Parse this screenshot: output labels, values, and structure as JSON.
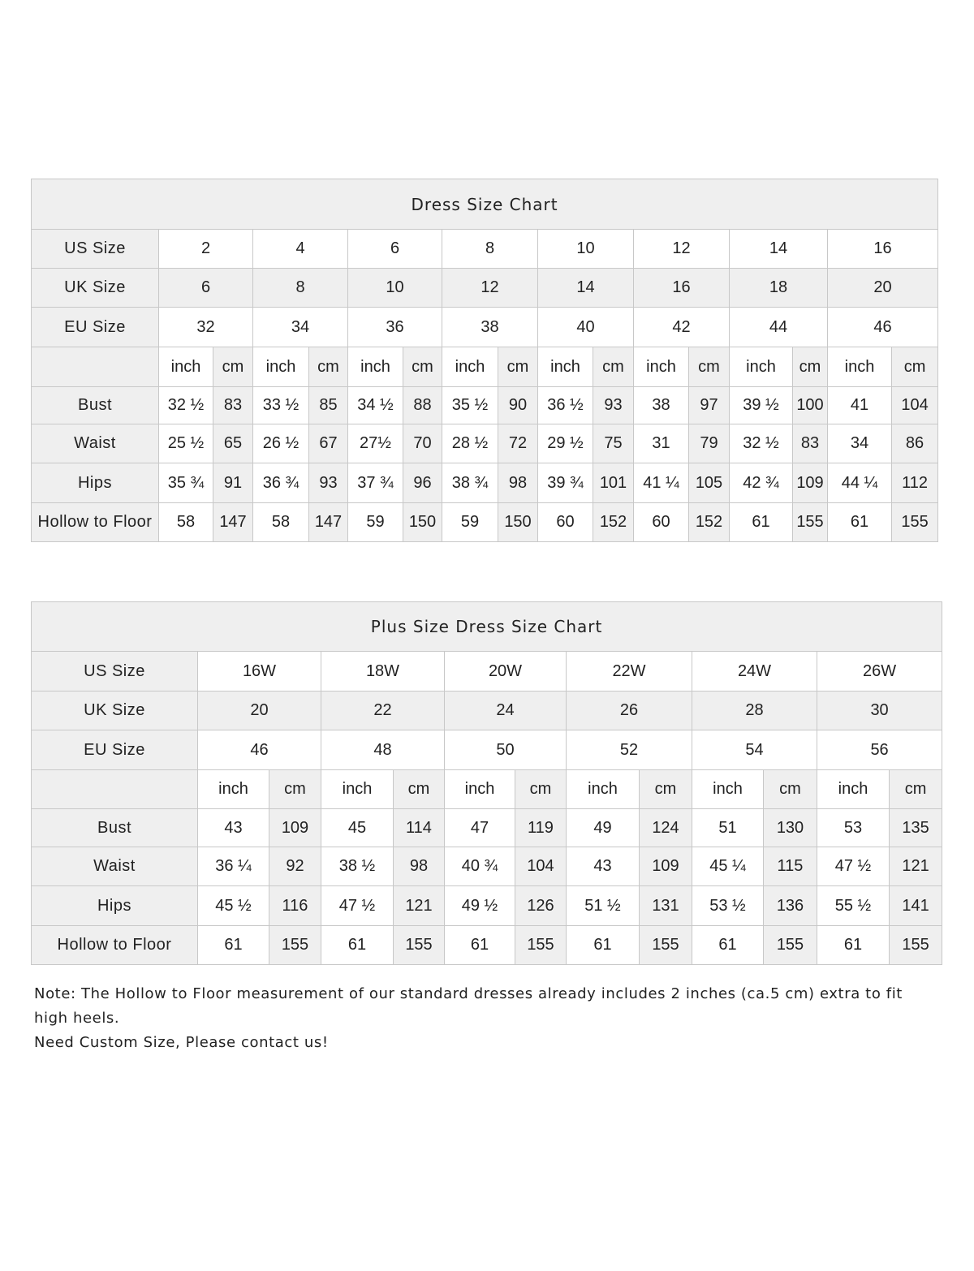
{
  "standard": {
    "title": "Dress Size Chart",
    "size_rows": [
      {
        "label": "US Size",
        "values": [
          "2",
          "4",
          "6",
          "8",
          "10",
          "12",
          "14",
          "16"
        ]
      },
      {
        "label": "UK Size",
        "values": [
          "6",
          "8",
          "10",
          "12",
          "14",
          "16",
          "18",
          "20"
        ]
      },
      {
        "label": "EU Size",
        "values": [
          "32",
          "34",
          "36",
          "38",
          "40",
          "42",
          "44",
          "46"
        ]
      }
    ],
    "unit_labels": [
      "inch",
      "cm"
    ],
    "measure_rows": [
      {
        "label": "Bust",
        "values": [
          "32 ½",
          "83",
          "33 ½",
          "85",
          "34 ½",
          "88",
          "35 ½",
          "90",
          "36 ½",
          "93",
          "38",
          "97",
          "39 ½",
          "100",
          "41",
          "104"
        ]
      },
      {
        "label": "Waist",
        "values": [
          "25 ½",
          "65",
          "26 ½",
          "67",
          "27½",
          "70",
          "28 ½",
          "72",
          "29 ½",
          "75",
          "31",
          "79",
          "32 ½",
          "83",
          "34",
          "86"
        ]
      },
      {
        "label": "Hips",
        "values": [
          "35 ¾",
          "91",
          "36 ¾",
          "93",
          "37 ¾",
          "96",
          "38 ¾",
          "98",
          "39 ¾",
          "101",
          "41 ¼",
          "105",
          "42 ¾",
          "109",
          "44 ¼",
          "112"
        ]
      },
      {
        "label": "Hollow to Floor",
        "values": [
          "58",
          "147",
          "58",
          "147",
          "59",
          "150",
          "59",
          "150",
          "60",
          "152",
          "60",
          "152",
          "61",
          "155",
          "61",
          "155"
        ]
      }
    ]
  },
  "plus": {
    "title": "Plus Size Dress Size Chart",
    "size_rows": [
      {
        "label": "US Size",
        "values": [
          "16W",
          "18W",
          "20W",
          "22W",
          "24W",
          "26W"
        ]
      },
      {
        "label": "UK Size",
        "values": [
          "20",
          "22",
          "24",
          "26",
          "28",
          "30"
        ]
      },
      {
        "label": "EU Size",
        "values": [
          "46",
          "48",
          "50",
          "52",
          "54",
          "56"
        ]
      }
    ],
    "unit_labels": [
      "inch",
      "cm"
    ],
    "measure_rows": [
      {
        "label": "Bust",
        "values": [
          "43",
          "109",
          "45",
          "114",
          "47",
          "119",
          "49",
          "124",
          "51",
          "130",
          "53",
          "135"
        ]
      },
      {
        "label": "Waist",
        "values": [
          "36 ¼",
          "92",
          "38 ½",
          "98",
          "40 ¾",
          "104",
          "43",
          "109",
          "45 ¼",
          "115",
          "47 ½",
          "121"
        ]
      },
      {
        "label": "Hips",
        "values": [
          "45 ½",
          "116",
          "47 ½",
          "121",
          "49 ½",
          "126",
          "51 ½",
          "131",
          "53 ½",
          "136",
          "55 ½",
          "141"
        ]
      },
      {
        "label": "Hollow to Floor",
        "values": [
          "61",
          "155",
          "61",
          "155",
          "61",
          "155",
          "61",
          "155",
          "61",
          "155",
          "61",
          "155"
        ]
      }
    ]
  },
  "notes": [
    "Note: The Hollow to Floor measurement of our standard dresses already includes 2 inches (ca.5 cm) extra to fit high heels.",
    "Need Custom Size, Please contact us!"
  ]
}
